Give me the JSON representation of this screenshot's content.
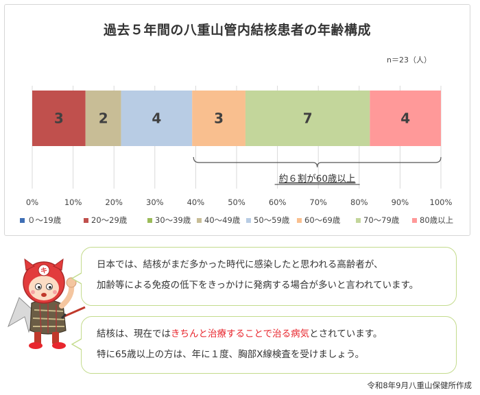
{
  "chart_data": {
    "type": "bar",
    "orientation": "horizontal-stacked-100",
    "title": "過去５年間の八重山管内結核患者の年齢構成",
    "unit_note": "n＝23（人）",
    "categories": [
      "０～19歳",
      "20～29歳",
      "30～39歳",
      "40～49歳",
      "50～59歳",
      "60～69歳",
      "70～79歳",
      "80歳以上"
    ],
    "colors": [
      "#3f6fb5",
      "#c0504d",
      "#9bbb59",
      "#c8bd96",
      "#b8cce4",
      "#f9bf8f",
      "#c3d69b",
      "#ff9999"
    ],
    "values": [
      0,
      3,
      0,
      2,
      4,
      3,
      7,
      4
    ],
    "x_ticks": [
      "0%",
      "10%",
      "20%",
      "30%",
      "40%",
      "50%",
      "60%",
      "70%",
      "80%",
      "90%",
      "100%"
    ],
    "xlim": [
      0,
      100
    ],
    "grid": true,
    "legend_position": "bottom",
    "annotation": "約６割が60歳以上"
  },
  "messages": {
    "bubble1_line1": "日本では、結核がまだ多かった時代に感染したと思われる高齢者が、",
    "bubble1_line2": "加齢等による免疫の低下をきっかけに発病する場合が多いと言われています。",
    "bubble2_line1_a": "結核は、現在では",
    "bubble2_line1_accent": "きちんと治療することで治る病気",
    "bubble2_line1_b": "とされています。",
    "bubble2_line2": "特に65歳以上の方は、年に１度、胸部X線検査を受けましょう。"
  },
  "footer": "令和8年9月八重山保健所作成",
  "mascot": {
    "badge": "キ"
  }
}
